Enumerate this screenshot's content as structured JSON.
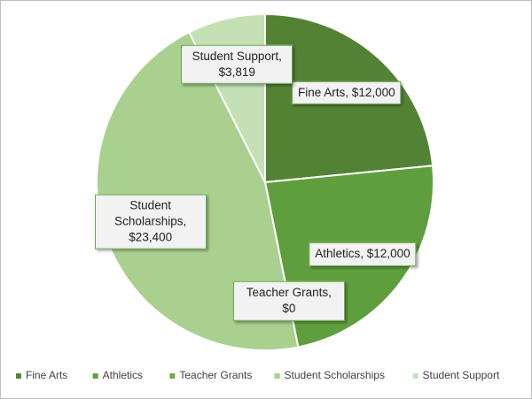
{
  "chart_data": {
    "type": "pie",
    "categories": [
      "Fine Arts",
      "Athletics",
      "Teacher Grants",
      "Student Scholarships",
      "Student Support"
    ],
    "values": [
      12000,
      12000,
      0,
      23400,
      3819
    ],
    "value_labels": [
      "Fine Arts, $12,000",
      "Athletics, $12,000",
      "Teacher Grants, $0",
      "Student Scholarships, $23,400",
      "Student Support, $3,819"
    ],
    "colors": [
      "#548235",
      "#5f9e3c",
      "#70ad47",
      "#a9d08e",
      "#c5e0b4"
    ],
    "legend": "bottom"
  }
}
